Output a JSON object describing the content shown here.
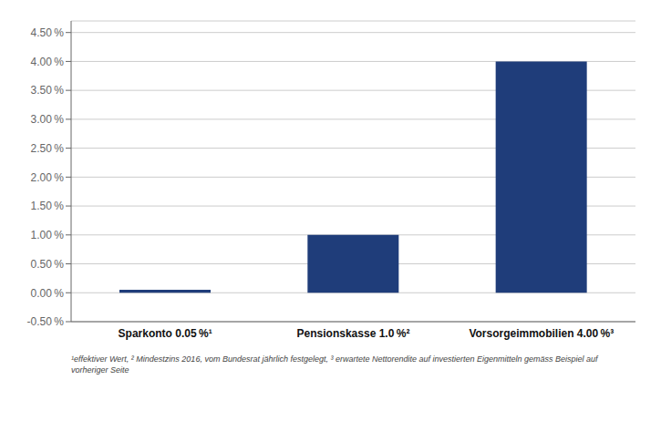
{
  "chart_data": {
    "type": "bar",
    "categories": [
      "Sparkonto 0.05 %¹",
      "Pensionskasse 1.0 %²",
      "Vorsorgeimmobilien 4.00 %³"
    ],
    "values": [
      0.0005,
      0.01,
      0.04
    ],
    "color": "#1f3d7a",
    "ylim": [
      -0.005,
      0.047
    ],
    "yticks": [
      {
        "value": -0.005,
        "label": "-0.50 %"
      },
      {
        "value": 0.0,
        "label": "0.00 %"
      },
      {
        "value": 0.005,
        "label": "0.50 %"
      },
      {
        "value": 0.01,
        "label": "1.00 %"
      },
      {
        "value": 0.015,
        "label": "1.50 %"
      },
      {
        "value": 0.02,
        "label": "2.00 %"
      },
      {
        "value": 0.025,
        "label": "2.50 %"
      },
      {
        "value": 0.03,
        "label": "3.00 %"
      },
      {
        "value": 0.035,
        "label": "3.50 %"
      },
      {
        "value": 0.04,
        "label": "4.00 %"
      },
      {
        "value": 0.045,
        "label": "4.50 %"
      }
    ],
    "grid": true,
    "annotations": [
      "¹effektiver Wert, ² Mindestzins 2016, vom Bundesrat jährlich festgelegt, ³ erwartete Nettorendite auf investierten Eigenmitteln gemäss Beispiel auf\nvorheriger Seite"
    ]
  }
}
